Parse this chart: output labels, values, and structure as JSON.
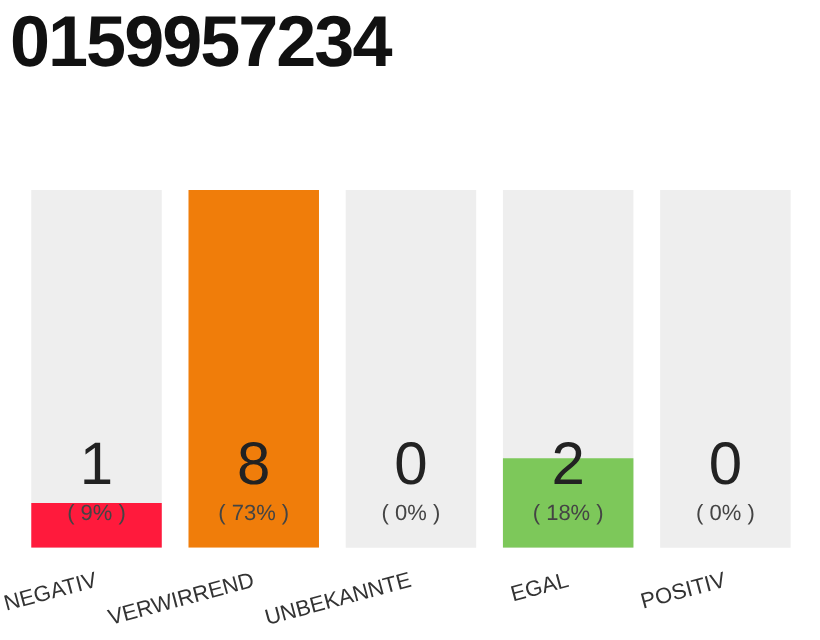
{
  "chart_data": {
    "type": "bar",
    "title": "0159957234",
    "categories": [
      "NEGATIV",
      "VERWIRREND",
      "UNBEKANNTE",
      "EGAL",
      "POSITIV"
    ],
    "values": [
      1,
      8,
      0,
      2,
      0
    ],
    "colors": [
      "#ff1a3c",
      "#f07d0a",
      "#999999",
      "#7dc85a",
      "#999999"
    ],
    "data_labels": true,
    "bands": [
      {
        "axis": "x",
        "from": "NEGATIV",
        "to": "NEGATIV",
        "color": "#eeeeee"
      },
      {
        "axis": "x",
        "from": "UNBEKANNTE",
        "to": "UNBEKANNTE",
        "color": "#eeeeee"
      },
      {
        "axis": "x",
        "from": "EGAL",
        "to": "EGAL",
        "color": "#eeeeee"
      },
      {
        "axis": "x",
        "from": "POSITIV",
        "to": "POSITIV",
        "color": "#eeeeee"
      }
    ],
    "annotations": [
      "( 9% )",
      "( 73% )",
      "( 0% )",
      "( 18% )",
      "( 0% )"
    ]
  }
}
